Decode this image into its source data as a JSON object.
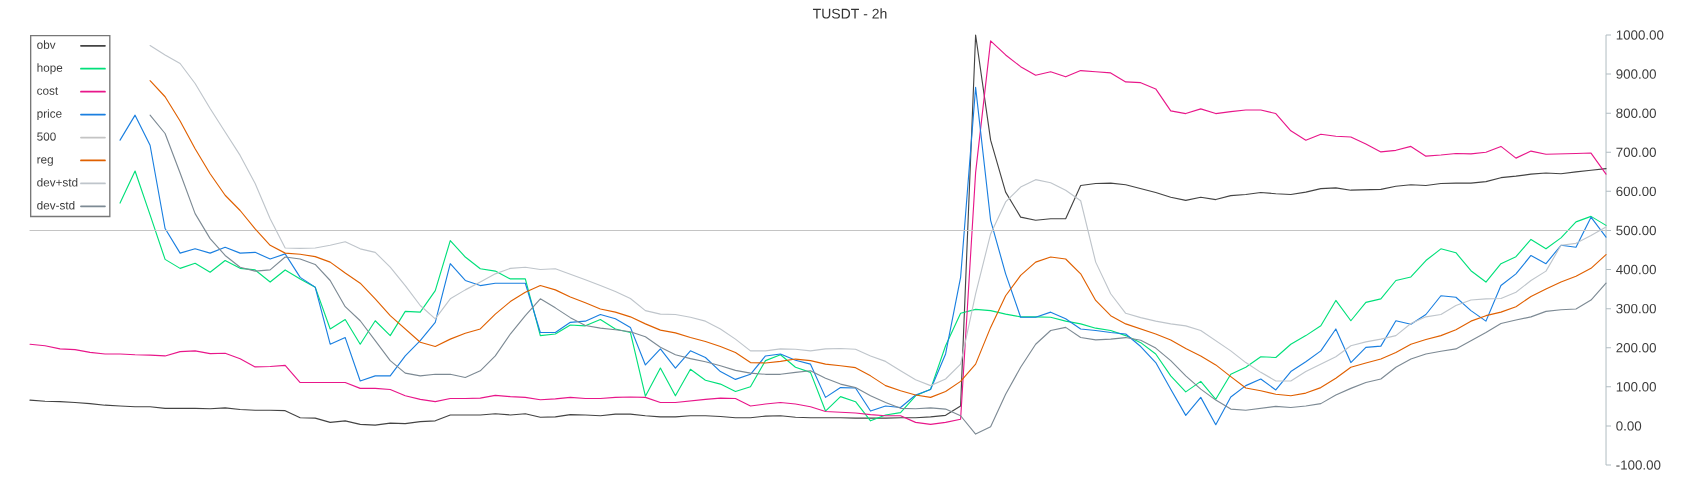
{
  "chart_data": {
    "type": "line",
    "title": "TUSDT - 2h",
    "categories": [
      null,
      null,
      null,
      null,
      null,
      null,
      null,
      null,
      null,
      null,
      null,
      null,
      null,
      null,
      null,
      null,
      null,
      null,
      null,
      null,
      null,
      null,
      null,
      null,
      null,
      null,
      null,
      null,
      null,
      null,
      null,
      null,
      null,
      null,
      null,
      null,
      null,
      null,
      null,
      null,
      null,
      null,
      null,
      null,
      null,
      null,
      null,
      null,
      null,
      null,
      null,
      null,
      null,
      null,
      null,
      null,
      null,
      null,
      null,
      null,
      null,
      null,
      null,
      null,
      null,
      null,
      null,
      null,
      null,
      null,
      null,
      null,
      null,
      null,
      null,
      null,
      null,
      null,
      null,
      null,
      null,
      null,
      null,
      null,
      null,
      null,
      null,
      null,
      null,
      null,
      null,
      null,
      null,
      null,
      null,
      null,
      null,
      null,
      null,
      null,
      null,
      null,
      null,
      null,
      null,
      null
    ],
    "series": [
      {
        "name": "obv",
        "color": "#444444",
        "values": [
          66,
          63,
          62,
          60,
          57,
          53,
          51,
          49,
          49,
          45,
          45,
          45,
          44,
          46,
          42,
          40,
          40,
          39,
          21,
          20,
          9,
          13,
          4,
          2,
          7,
          6,
          11,
          13,
          28,
          28,
          28,
          31,
          28,
          31,
          22,
          23,
          29,
          28,
          26,
          30,
          30,
          26,
          23,
          23,
          26,
          26,
          24,
          21,
          21,
          25,
          26,
          22,
          21,
          21,
          21,
          20,
          20,
          20,
          21,
          21,
          23,
          27,
          51,
          1000,
          731,
          598,
          534,
          526,
          530,
          530,
          615,
          620,
          621,
          617,
          607,
          597,
          585,
          577,
          585,
          579,
          589,
          592,
          597,
          594,
          592,
          598,
          607,
          609,
          603,
          604,
          605,
          613,
          617,
          615,
          620,
          621,
          621,
          625,
          635,
          639,
          644,
          647,
          645,
          650,
          654,
          658
        ]
      },
      {
        "name": "hope",
        "color": "#00e07a",
        "values": [
          null,
          null,
          null,
          null,
          null,
          null,
          570,
          652,
          540,
          426,
          403,
          416,
          393,
          423,
          403,
          399,
          368,
          399,
          376,
          355,
          248,
          272,
          209,
          269,
          231,
          293,
          291,
          346,
          474,
          432,
          402,
          396,
          376,
          376,
          231,
          235,
          258,
          256,
          272,
          248,
          239,
          76,
          148,
          77,
          145,
          117,
          107,
          88,
          100,
          167,
          182,
          150,
          137,
          38,
          75,
          62,
          13,
          28,
          34,
          77,
          94,
          205,
          288,
          298,
          295,
          286,
          279,
          279,
          278,
          268,
          261,
          250,
          244,
          231,
          213,
          184,
          128,
          87,
          114,
          68,
          132,
          150,
          177,
          175,
          209,
          231,
          256,
          321,
          269,
          316,
          325,
          372,
          381,
          423,
          453,
          443,
          397,
          368,
          415,
          433,
          477,
          453,
          481,
          522,
          536,
          513
        ]
      },
      {
        "name": "cost",
        "color": "#e8178a",
        "values": [
          209,
          205,
          197,
          195,
          188,
          184,
          184,
          182,
          181,
          179,
          190,
          192,
          185,
          186,
          172,
          151,
          152,
          155,
          111,
          111,
          111,
          111,
          96,
          96,
          93,
          77,
          68,
          62,
          70,
          70,
          71,
          78,
          75,
          73,
          67,
          69,
          73,
          70,
          70,
          73,
          74,
          73,
          60,
          60,
          64,
          68,
          71,
          70,
          51,
          56,
          60,
          56,
          49,
          37,
          35,
          33,
          29,
          26,
          26,
          9,
          4,
          9,
          17,
          648,
          985,
          949,
          919,
          897,
          906,
          893,
          909,
          906,
          903,
          880,
          878,
          862,
          806,
          799,
          811,
          799,
          804,
          808,
          808,
          799,
          755,
          731,
          746,
          741,
          739,
          721,
          701,
          705,
          715,
          690,
          693,
          697,
          696,
          700,
          715,
          685,
          703,
          695,
          696,
          697,
          698,
          644
        ]
      },
      {
        "name": "price",
        "color": "#1a7fe0",
        "values": [
          null,
          null,
          null,
          null,
          null,
          null,
          731,
          795,
          718,
          505,
          442,
          453,
          442,
          457,
          442,
          444,
          427,
          440,
          380,
          355,
          209,
          226,
          115,
          128,
          128,
          179,
          218,
          265,
          415,
          372,
          359,
          365,
          365,
          365,
          239,
          239,
          265,
          268,
          285,
          274,
          252,
          156,
          197,
          148,
          192,
          175,
          139,
          119,
          132,
          179,
          184,
          168,
          158,
          73,
          98,
          97,
          38,
          51,
          47,
          79,
          93,
          184,
          380,
          866,
          526,
          389,
          278,
          278,
          291,
          274,
          248,
          244,
          239,
          235,
          203,
          162,
          94,
          27,
          73,
          3,
          74,
          103,
          120,
          92,
          139,
          164,
          192,
          248,
          162,
          201,
          204,
          269,
          260,
          285,
          333,
          329,
          295,
          268,
          359,
          389,
          436,
          415,
          462,
          457,
          534,
          483
        ]
      },
      {
        "name": "500",
        "color": "#c4c4c4",
        "values": [
          500,
          500,
          500,
          500,
          500,
          500,
          500,
          500,
          500,
          500,
          500,
          500,
          500,
          500,
          500,
          500,
          500,
          500,
          500,
          500,
          500,
          500,
          500,
          500,
          500,
          500,
          500,
          500,
          500,
          500,
          500,
          500,
          500,
          500,
          500,
          500,
          500,
          500,
          500,
          500,
          500,
          500,
          500,
          500,
          500,
          500,
          500,
          500,
          500,
          500,
          500,
          500,
          500,
          500,
          500,
          500,
          500,
          500,
          500,
          500,
          500,
          500,
          500,
          500,
          500,
          500,
          500,
          500,
          500,
          500,
          500,
          500,
          500,
          500,
          500,
          500,
          500,
          500,
          500,
          500,
          500,
          500,
          500,
          500,
          500,
          500,
          500,
          500,
          500,
          500,
          500,
          500,
          500,
          500,
          500,
          500,
          500,
          500,
          500,
          500,
          500,
          500,
          500,
          500,
          500,
          500
        ]
      },
      {
        "name": "reg",
        "color": "#e06000",
        "values": [
          null,
          null,
          null,
          null,
          null,
          null,
          null,
          null,
          883,
          842,
          780,
          709,
          645,
          590,
          551,
          504,
          462,
          442,
          439,
          433,
          419,
          391,
          365,
          325,
          282,
          248,
          214,
          203,
          222,
          237,
          248,
          286,
          318,
          342,
          359,
          348,
          330,
          315,
          299,
          291,
          279,
          261,
          245,
          238,
          226,
          216,
          203,
          188,
          162,
          161,
          165,
          171,
          167,
          158,
          154,
          149,
          128,
          103,
          90,
          79,
          73,
          88,
          114,
          158,
          252,
          333,
          385,
          419,
          432,
          427,
          389,
          321,
          282,
          261,
          248,
          235,
          220,
          198,
          179,
          156,
          126,
          97,
          90,
          81,
          77,
          84,
          98,
          122,
          150,
          161,
          171,
          188,
          209,
          221,
          231,
          246,
          268,
          282,
          291,
          305,
          331,
          350,
          368,
          383,
          403,
          438
        ]
      },
      {
        "name": "dev+std",
        "color": "#bfc5cb",
        "values": [
          null,
          null,
          null,
          null,
          null,
          null,
          null,
          null,
          973,
          949,
          927,
          876,
          812,
          752,
          692,
          620,
          530,
          455,
          454,
          455,
          462,
          471,
          453,
          444,
          406,
          359,
          308,
          274,
          325,
          348,
          368,
          389,
          403,
          406,
          400,
          402,
          388,
          374,
          359,
          344,
          326,
          295,
          286,
          285,
          278,
          268,
          248,
          222,
          192,
          192,
          197,
          196,
          192,
          197,
          198,
          196,
          179,
          165,
          141,
          118,
          103,
          120,
          158,
          338,
          491,
          573,
          611,
          630,
          622,
          603,
          576,
          419,
          338,
          288,
          277,
          268,
          261,
          256,
          244,
          218,
          192,
          162,
          137,
          115,
          115,
          139,
          158,
          177,
          205,
          215,
          222,
          231,
          262,
          279,
          285,
          308,
          322,
          325,
          326,
          342,
          372,
          396,
          462,
          467,
          487,
          509
        ]
      },
      {
        "name": "dev-std",
        "color": "#7d8a94",
        "values": [
          null,
          null,
          null,
          null,
          null,
          null,
          null,
          null,
          795,
          748,
          647,
          543,
          479,
          436,
          406,
          396,
          399,
          432,
          427,
          413,
          372,
          305,
          269,
          218,
          167,
          135,
          128,
          132,
          132,
          124,
          141,
          179,
          235,
          282,
          325,
          302,
          277,
          257,
          250,
          246,
          241,
          228,
          201,
          182,
          172,
          164,
          154,
          142,
          135,
          132,
          132,
          137,
          141,
          122,
          107,
          98,
          77,
          60,
          45,
          44,
          46,
          43,
          26,
          -21,
          -2,
          81,
          150,
          209,
          244,
          252,
          226,
          220,
          222,
          226,
          219,
          199,
          167,
          128,
          94,
          66,
          43,
          40,
          45,
          50,
          47,
          51,
          57,
          79,
          96,
          111,
          120,
          150,
          171,
          184,
          191,
          197,
          218,
          239,
          262,
          271,
          279,
          293,
          297,
          299,
          322,
          365
        ]
      }
    ],
    "ylim": [
      -100,
      1000
    ],
    "yticks": [
      {
        "value": -100,
        "label": "-100.00"
      },
      {
        "value": 0,
        "label": "0.00"
      },
      {
        "value": 100,
        "label": "100.00"
      },
      {
        "value": 200,
        "label": "200.00"
      },
      {
        "value": 300,
        "label": "300.00"
      },
      {
        "value": 400,
        "label": "400.00"
      },
      {
        "value": 500,
        "label": "500.00"
      },
      {
        "value": 600,
        "label": "600.00"
      },
      {
        "value": 700,
        "label": "700.00"
      },
      {
        "value": 800,
        "label": "800.00"
      },
      {
        "value": 900,
        "label": "900.00"
      },
      {
        "value": 1000,
        "label": "1000.00"
      }
    ],
    "legend": "top left",
    "tick_labels": "y"
  }
}
